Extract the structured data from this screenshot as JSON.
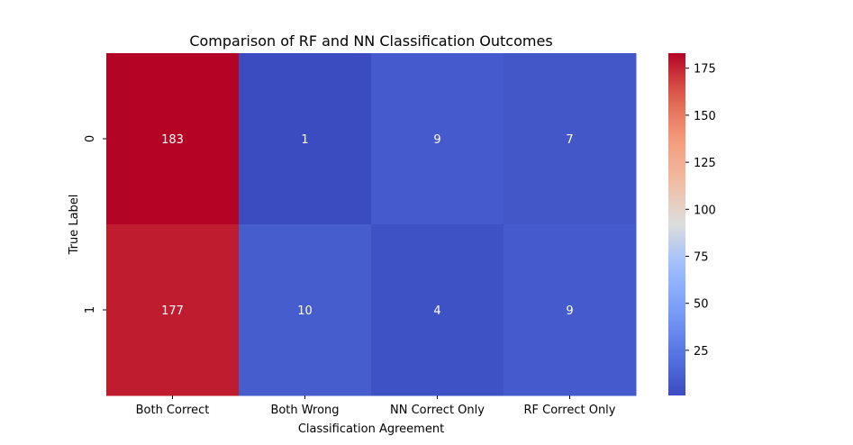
{
  "chart_data": {
    "type": "heatmap",
    "title": "Comparison of RF and NN Classification Outcomes",
    "xlabel": "Classification Agreement",
    "ylabel": "True Label",
    "x_categories": [
      "Both Correct",
      "Both Wrong",
      "NN Correct Only",
      "RF Correct Only"
    ],
    "y_categories": [
      "0",
      "1"
    ],
    "values": [
      [
        183,
        1,
        9,
        7
      ],
      [
        177,
        10,
        4,
        9
      ]
    ],
    "annotations": true,
    "colormap": "coolwarm",
    "colorbar": {
      "vmin": 1,
      "vmax": 183,
      "ticks": [
        25,
        50,
        75,
        100,
        125,
        150,
        175
      ]
    },
    "grid": false,
    "legend": "colorbar-right"
  }
}
